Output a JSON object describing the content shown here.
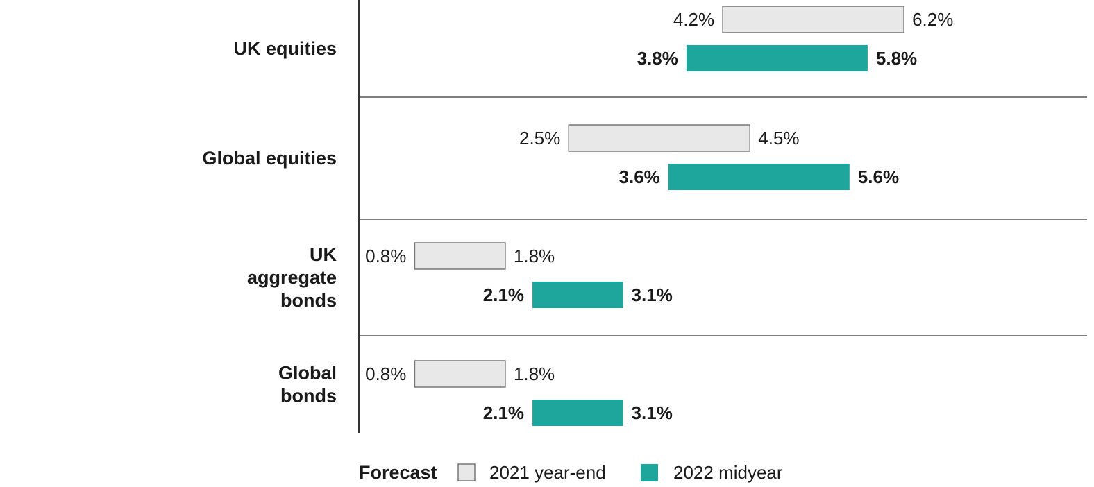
{
  "chart_data": {
    "type": "bar",
    "orientation": "horizontal-range",
    "categories": [
      [
        "UK equities"
      ],
      [
        "Global equities"
      ],
      [
        "UK",
        "aggregate",
        "bonds"
      ],
      [
        "Global",
        "bonds"
      ]
    ],
    "series": [
      {
        "name": "2021 year-end",
        "color": "#e8e8e8",
        "stroke": "#777777",
        "ranges": [
          [
            4.2,
            6.2
          ],
          [
            2.5,
            4.5
          ],
          [
            0.8,
            1.8
          ],
          [
            0.8,
            1.8
          ]
        ],
        "labels": [
          [
            "4.2%",
            "6.2%"
          ],
          [
            "2.5%",
            "4.5%"
          ],
          [
            "0.8%",
            "1.8%"
          ],
          [
            "0.8%",
            "1.8%"
          ]
        ]
      },
      {
        "name": "2022 midyear",
        "color": "#1ea59c",
        "ranges": [
          [
            3.8,
            5.8
          ],
          [
            3.6,
            5.6
          ],
          [
            2.1,
            3.1
          ],
          [
            2.1,
            3.1
          ]
        ],
        "labels": [
          [
            "3.8%",
            "5.8%"
          ],
          [
            "3.6%",
            "5.6%"
          ],
          [
            "2.1%",
            "3.1%"
          ],
          [
            "2.1%",
            "3.1%"
          ]
        ]
      }
    ],
    "legend": {
      "title": "Forecast",
      "placement": "bottom"
    },
    "grid": false
  }
}
